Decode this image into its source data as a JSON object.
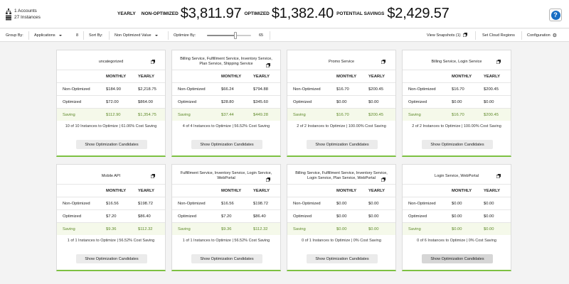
{
  "header": {
    "accounts": "1 Accounts",
    "instances": "27 Instances",
    "yearly_label": "YEARLY",
    "non_optimized_label": "NON-OPTIMIZED",
    "non_optimized_value": "$3,811.97",
    "optimized_label": "OPTIMIZED",
    "optimized_value": "$1,382.40",
    "savings_label": "POTENTIAL SAVINGS",
    "savings_value": "$2,429.57",
    "help_label": "?"
  },
  "toolbar": {
    "group_by_label": "Group By:",
    "group_by_value": "Applications",
    "group_count": "8",
    "sort_by_label": "Sort By:",
    "sort_by_value": "Non Optimized Value",
    "optimize_by_label": "Optimize By:",
    "optimize_value": "65",
    "optimize_level": 0.65,
    "view_snapshots": "View Snapshots (1)",
    "set_cloud_regions": "Set Cloud Regions",
    "configuration": "Configuration"
  },
  "table_labels": {
    "monthly": "MONTHLY",
    "yearly": "YEARLY",
    "non_optimized": "Non-Optimized",
    "optimized": "Optimized",
    "saving": "Saving",
    "button": "Show Optimization Candidates"
  },
  "cards": [
    {
      "title": "uncategorized",
      "non_opt": [
        "$184.90",
        "$2,218.75"
      ],
      "opt": [
        "$72.00",
        "$864.00"
      ],
      "saving": [
        "$112.90",
        "$1,354.75"
      ],
      "footer": "10 of 10 Instances to Optimize | 61.06% Cost Saving"
    },
    {
      "title": "Billing Service, Fulfillment Service, Inventory Service, Plan Service, Shipping Service",
      "non_opt": [
        "$66.24",
        "$794.88"
      ],
      "opt": [
        "$28.80",
        "$345.60"
      ],
      "saving": [
        "$37.44",
        "$449.28"
      ],
      "footer": "4 of 4 Instances to Optimize | 56.52% Cost Saving"
    },
    {
      "title": "Promo Service",
      "non_opt": [
        "$16.70",
        "$200.45"
      ],
      "opt": [
        "$0.00",
        "$0.00"
      ],
      "saving": [
        "$16.70",
        "$200.45"
      ],
      "footer": "2 of 2 Instances to Optimize | 100.00% Cost Saving"
    },
    {
      "title": "Billing Service, Login Service",
      "non_opt": [
        "$16.70",
        "$200.45"
      ],
      "opt": [
        "$0.00",
        "$0.00"
      ],
      "saving": [
        "$16.70",
        "$200.45"
      ],
      "footer": "2 of 2 Instances to Optimize | 100.00% Cost Saving"
    },
    {
      "title": "Mobile API",
      "non_opt": [
        "$16.56",
        "$198.72"
      ],
      "opt": [
        "$7.20",
        "$86.40"
      ],
      "saving": [
        "$9.36",
        "$112.32"
      ],
      "footer": "1 of 1 Instances to Optimize | 56.52% Cost Saving"
    },
    {
      "title": "Fulfillment Service, Inventory Service, Login Service, WebPortal",
      "non_opt": [
        "$16.56",
        "$198.72"
      ],
      "opt": [
        "$7.20",
        "$86.40"
      ],
      "saving": [
        "$9.36",
        "$112.32"
      ],
      "footer": "1 of 1 Instances to Optimize | 56.52% Cost Saving"
    },
    {
      "title": "Billing Service, Fulfillment Service, Inventory Service, Login Service, Plan Service, WebPortal",
      "non_opt": [
        "$0.00",
        "$0.00"
      ],
      "opt": [
        "$0.00",
        "$0.00"
      ],
      "saving": [
        "$0.00",
        "$0.00"
      ],
      "footer": "0 of 1 Instances to Optimize | 0% Cost Saving"
    },
    {
      "title": "Login Service, WebPortal",
      "non_opt": [
        "$0.00",
        "$0.00"
      ],
      "opt": [
        "$0.00",
        "$0.00"
      ],
      "saving": [
        "$0.00",
        "$0.00"
      ],
      "footer": "0 of 6 Instances to Optimize | 0% Cost Saving"
    }
  ]
}
